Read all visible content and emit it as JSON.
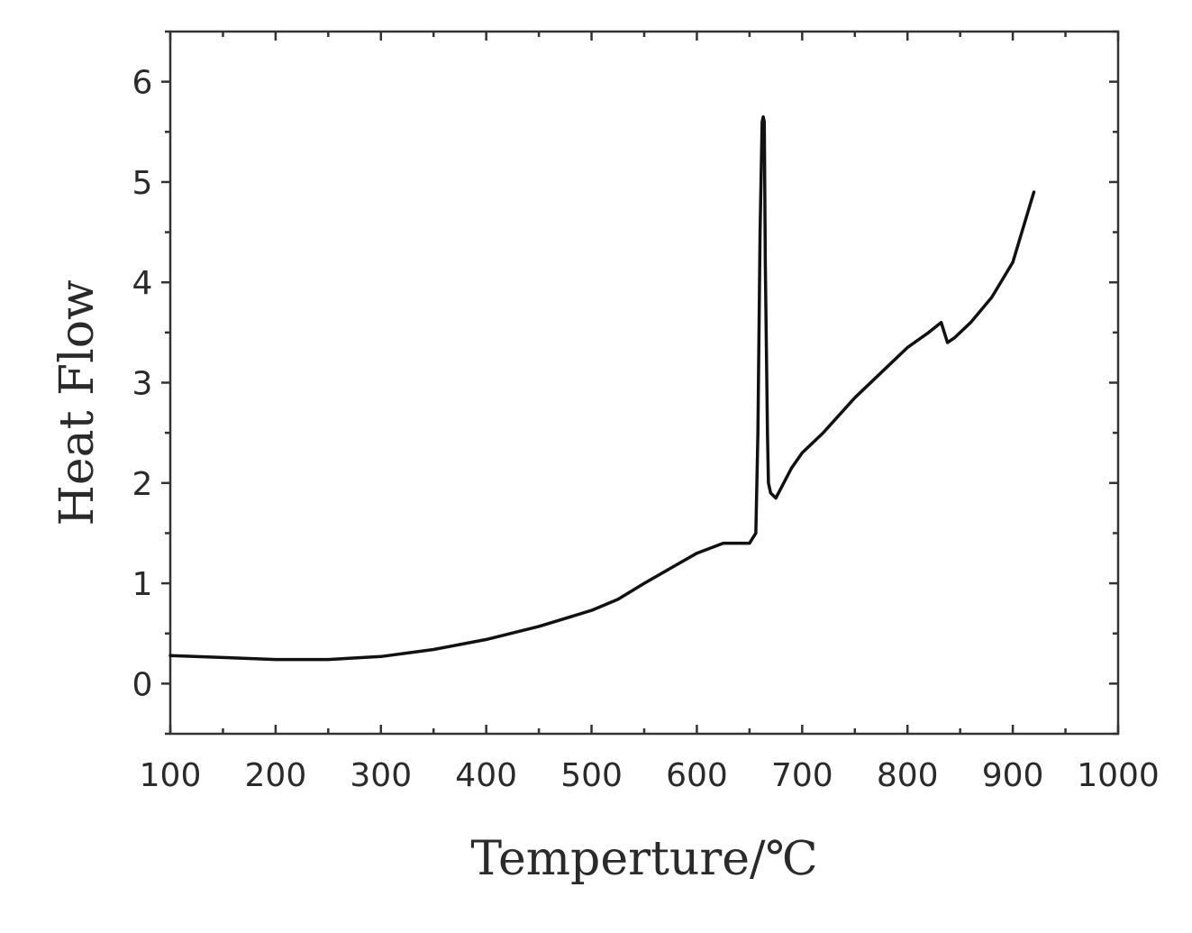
{
  "chart_data": {
    "type": "line",
    "title": "",
    "xlabel": "Temperture/℃",
    "ylabel": "Heat Flow",
    "xlim": [
      100,
      1000
    ],
    "ylim": [
      -0.5,
      6.5
    ],
    "x_ticks": [
      100,
      200,
      300,
      400,
      500,
      600,
      700,
      800,
      900,
      1000
    ],
    "x_tick_labels": [
      "100",
      "200",
      "300",
      "400",
      "500",
      "600",
      "700",
      "800",
      "900",
      "1000"
    ],
    "y_ticks": [
      0,
      1,
      2,
      3,
      4,
      5,
      6
    ],
    "y_tick_labels": [
      "0",
      "1",
      "2",
      "3",
      "4",
      "5",
      "6"
    ],
    "grid": false,
    "legend": "none",
    "series": [
      {
        "color": "#111111",
        "x": [
          100,
          150,
          200,
          250,
          300,
          350,
          400,
          450,
          500,
          525,
          550,
          575,
          600,
          625,
          640,
          650,
          656,
          658,
          660,
          662,
          663,
          664,
          665,
          667,
          668,
          670,
          675,
          680,
          685,
          690,
          700,
          720,
          750,
          780,
          800,
          820,
          832,
          838,
          845,
          860,
          880,
          900,
          910,
          920
        ],
        "y": [
          0.28,
          0.26,
          0.24,
          0.24,
          0.27,
          0.34,
          0.44,
          0.57,
          0.73,
          0.84,
          1.0,
          1.15,
          1.3,
          1.4,
          1.4,
          1.4,
          1.5,
          2.5,
          4.5,
          5.6,
          5.65,
          5.6,
          4.2,
          2.5,
          2.0,
          1.9,
          1.85,
          1.95,
          2.05,
          2.15,
          2.3,
          2.5,
          2.85,
          3.15,
          3.35,
          3.5,
          3.6,
          3.4,
          3.45,
          3.6,
          3.85,
          4.2,
          4.55,
          4.9
        ]
      }
    ]
  }
}
